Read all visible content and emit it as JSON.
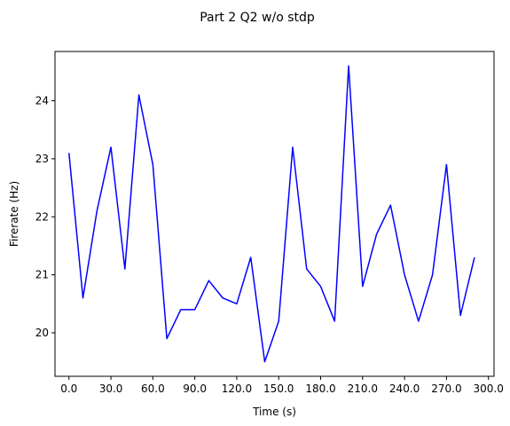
{
  "chart_data": {
    "type": "line",
    "title": "Part 2 Q2 w/o stdp",
    "xlabel": "Time (s)",
    "ylabel": "Firerate (Hz)",
    "xlim": [
      -10,
      304
    ],
    "ylim": [
      19.25,
      24.85
    ],
    "grid": false,
    "x_ticks": [
      0,
      30,
      60,
      90,
      120,
      150,
      180,
      210,
      240,
      270,
      300
    ],
    "x_tick_labels": [
      "0.0",
      "30.0",
      "60.0",
      "90.0",
      "120.0",
      "150.0",
      "180.0",
      "210.0",
      "240.0",
      "270.0",
      "300.0"
    ],
    "y_ticks": [
      20,
      21,
      22,
      23,
      24
    ],
    "y_tick_labels": [
      "20",
      "21",
      "22",
      "23",
      "24"
    ],
    "series": [
      {
        "color": "#0000ff",
        "x": [
          0,
          10,
          20,
          30,
          40,
          50,
          60,
          70,
          80,
          90,
          100,
          110,
          120,
          130,
          140,
          150,
          160,
          170,
          180,
          190,
          200,
          210,
          220,
          230,
          240,
          250,
          260,
          270,
          280,
          290
        ],
        "y": [
          23.1,
          20.6,
          22.1,
          23.2,
          21.1,
          24.1,
          22.9,
          19.9,
          20.4,
          20.4,
          20.9,
          20.6,
          20.5,
          21.3,
          19.5,
          20.2,
          23.2,
          21.1,
          20.8,
          20.2,
          24.6,
          20.8,
          21.7,
          22.2,
          21.0,
          20.2,
          21.0,
          22.9,
          20.3,
          21.3
        ]
      }
    ]
  }
}
